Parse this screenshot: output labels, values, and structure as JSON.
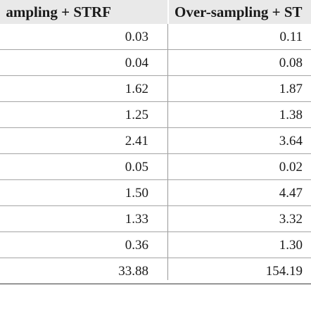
{
  "table": {
    "headers": [
      "ampling + STRF",
      "Over-sampling + ST"
    ],
    "rows": [
      [
        "0.03",
        "0.11"
      ],
      [
        "0.04",
        "0.08"
      ],
      [
        "1.62",
        "1.87"
      ],
      [
        "1.25",
        "1.38"
      ],
      [
        "2.41",
        "3.64"
      ],
      [
        "0.05",
        "0.02"
      ],
      [
        "1.50",
        "4.47"
      ],
      [
        "1.33",
        "3.32"
      ],
      [
        "0.36",
        "1.30"
      ],
      [
        "33.88",
        "154.19"
      ]
    ]
  },
  "colors": {
    "header_background": "#e9e9e9",
    "row_rule": "#a5a5a5",
    "bottom_rule": "#3a3a3a",
    "text": "#1a1a1a"
  }
}
